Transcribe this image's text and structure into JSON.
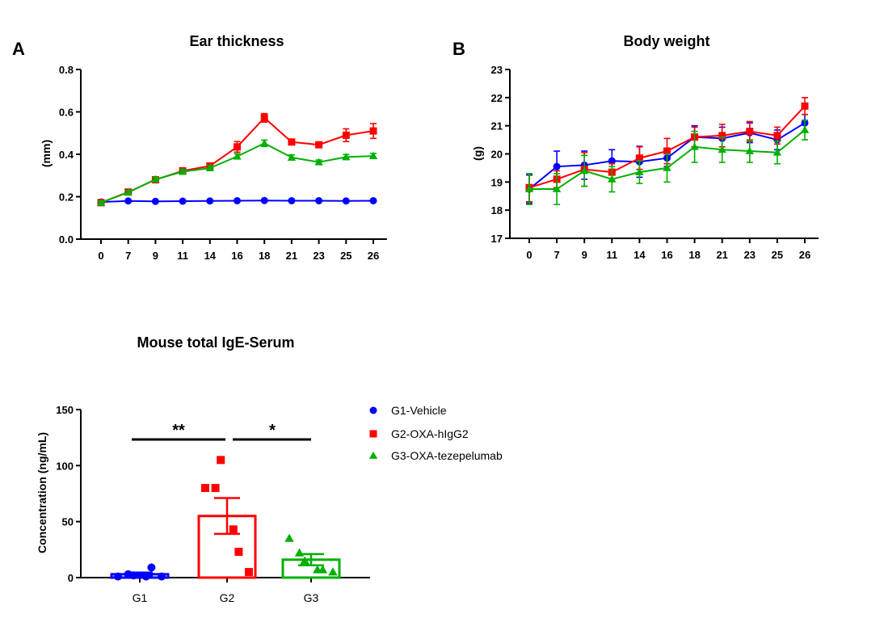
{
  "colors": {
    "g1": "#0000ff",
    "g2": "#ff0000",
    "g3": "#00b000",
    "axis": "#000000"
  },
  "chart_data": [
    {
      "type": "line",
      "panel": "A",
      "title": "Ear thickness",
      "ylabel": "(mm)",
      "xlabel": "",
      "categories": [
        "0",
        "7",
        "9",
        "11",
        "14",
        "16",
        "18",
        "21",
        "23",
        "25",
        "26"
      ],
      "ylim": [
        0.0,
        0.8
      ],
      "yticks": [
        "0.0",
        "0.2",
        "0.4",
        "0.6",
        "0.8"
      ],
      "series": [
        {
          "name": "G1-Vehicle",
          "color": "#0000ff",
          "marker": "circle",
          "values": [
            0.175,
            0.18,
            0.178,
            0.179,
            0.18,
            0.181,
            0.182,
            0.181,
            0.181,
            0.18,
            0.181
          ],
          "errors": [
            0.005,
            0.004,
            0.004,
            0.004,
            0.004,
            0.004,
            0.004,
            0.004,
            0.004,
            0.004,
            0.004
          ]
        },
        {
          "name": "G2-OXA-hIgG2",
          "color": "#ff0000",
          "marker": "square",
          "values": [
            0.172,
            0.222,
            0.28,
            0.322,
            0.345,
            0.435,
            0.572,
            0.458,
            0.445,
            0.49,
            0.51
          ],
          "errors": [
            0.008,
            0.01,
            0.01,
            0.012,
            0.012,
            0.025,
            0.02,
            0.01,
            0.01,
            0.03,
            0.035
          ]
        },
        {
          "name": "G3-OXA-tezepelumab",
          "color": "#00b000",
          "marker": "triangle",
          "values": [
            0.172,
            0.22,
            0.282,
            0.318,
            0.335,
            0.39,
            0.452,
            0.385,
            0.363,
            0.387,
            0.392
          ],
          "errors": [
            0.008,
            0.01,
            0.01,
            0.012,
            0.012,
            0.012,
            0.015,
            0.012,
            0.01,
            0.012,
            0.012
          ]
        }
      ]
    },
    {
      "type": "line",
      "panel": "B",
      "title": "Body weight",
      "ylabel": "(g)",
      "xlabel": "",
      "categories": [
        "0",
        "7",
        "9",
        "11",
        "14",
        "16",
        "18",
        "21",
        "23",
        "25",
        "26"
      ],
      "ylim": [
        17,
        23
      ],
      "yticks": [
        "17",
        "18",
        "19",
        "20",
        "21",
        "22",
        "23"
      ],
      "series": [
        {
          "name": "G1-Vehicle",
          "color": "#0000ff",
          "marker": "circle",
          "values": [
            18.75,
            19.55,
            19.6,
            19.75,
            19.72,
            19.85,
            20.6,
            20.55,
            20.75,
            20.5,
            21.1
          ],
          "errors": [
            0.5,
            0.55,
            0.5,
            0.4,
            0.55,
            0.3,
            0.4,
            0.4,
            0.35,
            0.35,
            0.3
          ]
        },
        {
          "name": "G2-OXA-hIgG2",
          "color": "#ff0000",
          "marker": "square",
          "values": [
            18.8,
            19.1,
            19.45,
            19.35,
            19.85,
            20.1,
            20.6,
            20.65,
            20.8,
            20.65,
            21.7
          ],
          "errors": [
            0.5,
            0.3,
            0.6,
            0.3,
            0.4,
            0.45,
            0.35,
            0.4,
            0.35,
            0.3,
            0.3
          ]
        },
        {
          "name": "G3-OXA-tezepelumab",
          "color": "#00b000",
          "marker": "triangle",
          "values": [
            18.75,
            18.75,
            19.4,
            19.1,
            19.35,
            19.5,
            20.25,
            20.15,
            20.1,
            20.05,
            20.85
          ],
          "errors": [
            0.55,
            0.55,
            0.55,
            0.45,
            0.4,
            0.5,
            0.55,
            0.45,
            0.4,
            0.4,
            0.35
          ]
        }
      ]
    },
    {
      "type": "bar",
      "title": "Mouse total IgE-Serum",
      "ylabel": "Concentration (ng/mL)",
      "xlabel": "",
      "categories": [
        "G1",
        "G2",
        "G3"
      ],
      "ylim": [
        0,
        150
      ],
      "yticks": [
        "0",
        "50",
        "100",
        "150"
      ],
      "values": [
        3,
        55,
        16
      ],
      "errors": [
        1.5,
        16,
        5
      ],
      "colors": [
        "#0000ff",
        "#ff0000",
        "#00b000"
      ],
      "markers": [
        "circle",
        "square",
        "triangle"
      ],
      "points": [
        [
          1,
          3,
          2,
          1,
          9,
          1
        ],
        [
          80,
          80,
          105,
          43,
          23,
          5
        ],
        [
          35,
          22,
          15,
          7,
          7,
          5
        ]
      ],
      "significance": [
        {
          "from": "G1",
          "to": "G2",
          "label": "**"
        },
        {
          "from": "G2",
          "to": "G3",
          "label": "*"
        }
      ]
    }
  ],
  "legend": {
    "position": "right-of-bar-chart",
    "entries": [
      {
        "label": "G1-Vehicle",
        "color": "#0000ff",
        "marker": "circle"
      },
      {
        "label": "G2-OXA-hIgG2",
        "color": "#ff0000",
        "marker": "square"
      },
      {
        "label": "G3-OXA-tezepelumab",
        "color": "#00b000",
        "marker": "triangle"
      }
    ]
  }
}
